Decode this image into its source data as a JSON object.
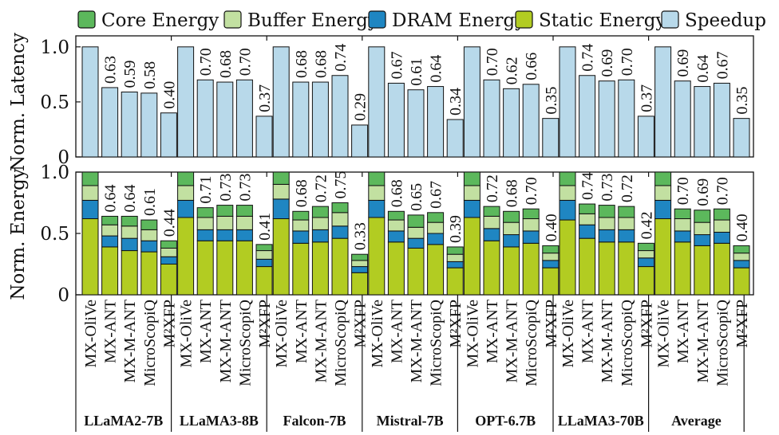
{
  "chart_data": {
    "type": "bar",
    "layout": "two stacked panels sharing x-axis, grouped by model",
    "legend": {
      "placement": "top",
      "entries": [
        {
          "label": "Core Energy",
          "color": "#5cb85c"
        },
        {
          "label": "Buffer Energy",
          "color": "#c2e0a1"
        },
        {
          "label": "DRAM Energy",
          "color": "#1f86c2"
        },
        {
          "label": "Static Energy",
          "color": "#b2cc22"
        },
        {
          "label": "Speedup",
          "color": "#b8d9ea"
        }
      ]
    },
    "methods": [
      "MX-OliVe",
      "MX-ANT",
      "MX-M-ANT",
      "MicroScopiQ",
      "M²XFP"
    ],
    "groups": [
      "LLaMA2-7B",
      "LLaMA3-8B",
      "Falcon-7B",
      "Mistral-7B",
      "OPT-6.7B",
      "LLaMA3-70B",
      "Average"
    ],
    "latency": {
      "ylabel": "Norm. Latency",
      "ylim": [
        0,
        1.1
      ],
      "yticks": [
        0,
        0.5,
        1.0
      ],
      "ytick_labels": [
        "0",
        "0.5",
        "1.0"
      ],
      "values": [
        [
          1.0,
          0.63,
          0.59,
          0.58,
          0.4
        ],
        [
          1.0,
          0.7,
          0.68,
          0.7,
          0.37
        ],
        [
          1.0,
          0.68,
          0.68,
          0.74,
          0.29
        ],
        [
          1.0,
          0.67,
          0.61,
          0.64,
          0.34
        ],
        [
          1.0,
          0.7,
          0.62,
          0.66,
          0.35
        ],
        [
          1.0,
          0.74,
          0.69,
          0.7,
          0.37
        ],
        [
          1.0,
          0.69,
          0.64,
          0.67,
          0.35
        ]
      ],
      "labels": [
        [
          "",
          "0.63",
          "0.59",
          "0.58",
          "0.40"
        ],
        [
          "",
          "0.70",
          "0.68",
          "0.70",
          "0.37"
        ],
        [
          "",
          "0.68",
          "0.68",
          "0.74",
          "0.29"
        ],
        [
          "",
          "0.67",
          "0.61",
          "0.64",
          "0.34"
        ],
        [
          "",
          "0.70",
          "0.62",
          "0.66",
          "0.35"
        ],
        [
          "",
          "0.74",
          "0.69",
          "0.70",
          "0.37"
        ],
        [
          "",
          "0.69",
          "0.64",
          "0.67",
          "0.35"
        ]
      ]
    },
    "energy": {
      "ylabel": "Norm. Energy",
      "ylim": [
        0,
        1.0
      ],
      "yticks": [
        0,
        0.5,
        1.0
      ],
      "ytick_labels": [
        "0",
        "0.5",
        "1.0"
      ],
      "stack_order_bottom_to_top": [
        "Static Energy",
        "DRAM Energy",
        "Buffer Energy",
        "Core Energy"
      ],
      "components": [
        [
          [
            0.62,
            0.15,
            0.12,
            0.11
          ],
          [
            0.39,
            0.09,
            0.09,
            0.07
          ],
          [
            0.36,
            0.1,
            0.1,
            0.08
          ],
          [
            0.35,
            0.09,
            0.09,
            0.08
          ],
          [
            0.25,
            0.06,
            0.07,
            0.06
          ]
        ],
        [
          [
            0.63,
            0.14,
            0.12,
            0.11
          ],
          [
            0.44,
            0.09,
            0.1,
            0.08
          ],
          [
            0.44,
            0.09,
            0.11,
            0.09
          ],
          [
            0.44,
            0.09,
            0.11,
            0.09
          ],
          [
            0.23,
            0.06,
            0.07,
            0.05
          ]
        ],
        [
          [
            0.62,
            0.16,
            0.12,
            0.1
          ],
          [
            0.42,
            0.1,
            0.09,
            0.07
          ],
          [
            0.43,
            0.1,
            0.1,
            0.09
          ],
          [
            0.46,
            0.1,
            0.11,
            0.08
          ],
          [
            0.18,
            0.05,
            0.05,
            0.05
          ]
        ],
        [
          [
            0.63,
            0.14,
            0.12,
            0.11
          ],
          [
            0.43,
            0.09,
            0.09,
            0.07
          ],
          [
            0.38,
            0.08,
            0.09,
            0.1
          ],
          [
            0.41,
            0.09,
            0.09,
            0.08
          ],
          [
            0.22,
            0.05,
            0.06,
            0.06
          ]
        ],
        [
          [
            0.63,
            0.14,
            0.12,
            0.11
          ],
          [
            0.44,
            0.1,
            0.1,
            0.08
          ],
          [
            0.39,
            0.1,
            0.1,
            0.09
          ],
          [
            0.42,
            0.1,
            0.1,
            0.08
          ],
          [
            0.22,
            0.06,
            0.06,
            0.06
          ]
        ],
        [
          [
            0.61,
            0.16,
            0.12,
            0.11
          ],
          [
            0.46,
            0.11,
            0.09,
            0.08
          ],
          [
            0.43,
            0.1,
            0.1,
            0.1
          ],
          [
            0.43,
            0.1,
            0.1,
            0.09
          ],
          [
            0.23,
            0.07,
            0.06,
            0.06
          ]
        ],
        [
          [
            0.62,
            0.15,
            0.12,
            0.11
          ],
          [
            0.43,
            0.09,
            0.1,
            0.08
          ],
          [
            0.4,
            0.09,
            0.1,
            0.1
          ],
          [
            0.42,
            0.09,
            0.1,
            0.09
          ],
          [
            0.22,
            0.06,
            0.06,
            0.06
          ]
        ]
      ],
      "labels": [
        [
          "",
          "0.64",
          "0.64",
          "0.61",
          "0.44"
        ],
        [
          "",
          "0.71",
          "0.73",
          "0.73",
          "0.41"
        ],
        [
          "",
          "0.68",
          "0.72",
          "0.75",
          "0.33"
        ],
        [
          "",
          "0.68",
          "0.65",
          "0.67",
          "0.39"
        ],
        [
          "",
          "0.72",
          "0.68",
          "0.70",
          "0.40"
        ],
        [
          "",
          "0.74",
          "0.73",
          "0.72",
          "0.42"
        ],
        [
          "",
          "0.70",
          "0.69",
          "0.70",
          "0.40"
        ]
      ]
    }
  }
}
